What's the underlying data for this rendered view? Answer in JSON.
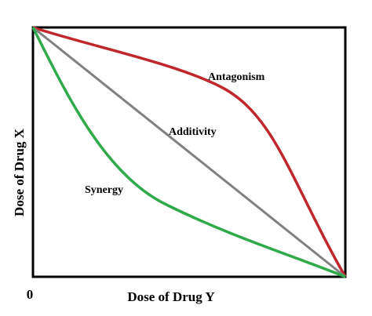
{
  "axes": {
    "x_label": "Dose of Drug Y",
    "y_label": "Dose of Drug X",
    "origin": "0"
  },
  "curves": {
    "antagonism": "Antagonism",
    "additivity": "Additivity",
    "synergy": "Synergy"
  }
}
